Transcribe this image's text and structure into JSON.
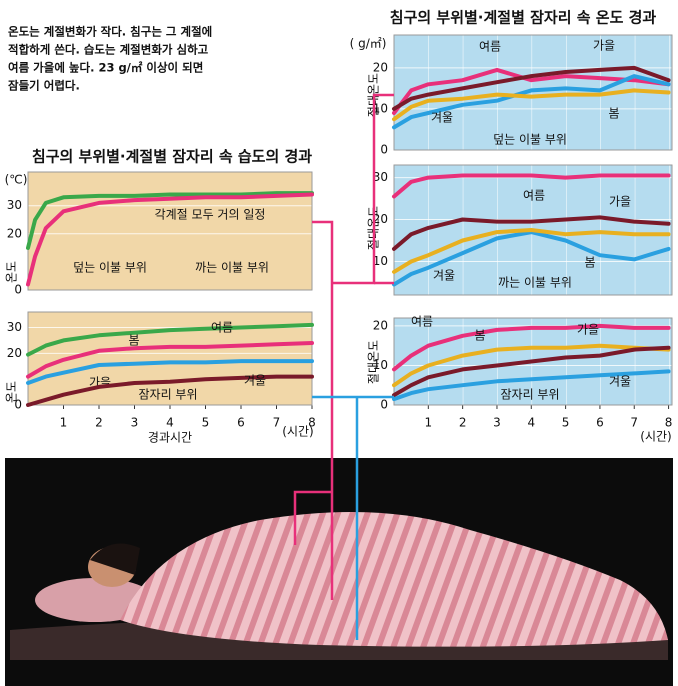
{
  "header": {
    "left_title": "침구의 부위별·계절별 잠자리 속 습도의 경과",
    "right_title": "침구의 부위별·계절별 잠자리 속 온도 경과",
    "note": [
      "온도는 계절변화가 작다. 침구는 그 계절에",
      "적합하게 쓴다. 습도는 계절변화가 심하고",
      "여름 가을에 높다. 23 g/㎡ 이상이 되면",
      "잠들기 어렵다."
    ]
  },
  "chart_data": [
    {
      "type": "line",
      "y_unit": "(℃)",
      "ylabel": "온도",
      "xlim": [
        0,
        8
      ],
      "ylim": [
        0,
        42
      ],
      "yticks": [
        0,
        20,
        30
      ],
      "annotations": [
        "각계절 모두 거의 일정"
      ],
      "x": [
        0,
        0.2,
        0.5,
        1,
        2,
        3,
        4,
        5,
        6,
        7,
        8
      ],
      "series": [
        {
          "name": "덮는 이불 부위",
          "color": "#3aa84a",
          "values": [
            15,
            25,
            31,
            33,
            33.5,
            33.5,
            34,
            34,
            34,
            34.5,
            34.5
          ]
        },
        {
          "name": "까는 이불 부위",
          "color": "#e8307a",
          "values": [
            2,
            12,
            22,
            28,
            31,
            32,
            32.5,
            33,
            33,
            33.5,
            34
          ]
        }
      ]
    },
    {
      "type": "line",
      "ylabel": "온도",
      "xlabel": "경과시간",
      "x_unit": "(시간)",
      "xlim": [
        0,
        8
      ],
      "ylim": [
        0,
        36
      ],
      "yticks": [
        0,
        20,
        30
      ],
      "xticks": [
        1,
        2,
        3,
        4,
        5,
        6,
        7,
        8
      ],
      "annotations": [
        "잠자리 부위"
      ],
      "x": [
        0,
        0.5,
        1,
        2,
        3,
        4,
        5,
        6,
        7,
        8
      ],
      "series": [
        {
          "name": "여름",
          "color": "#3aa84a",
          "values": [
            19.5,
            23,
            25,
            27,
            28,
            29,
            29.5,
            30,
            30.5,
            31
          ]
        },
        {
          "name": "봄",
          "color": "#e8307a",
          "values": [
            11,
            15,
            17.5,
            21,
            22,
            22.5,
            22.5,
            23,
            23.5,
            24
          ]
        },
        {
          "name": "가을",
          "color": "#2aa0e0",
          "values": [
            8.5,
            11,
            12.5,
            15.5,
            16,
            16.5,
            16.5,
            17,
            17,
            17
          ]
        },
        {
          "name": "겨울",
          "color": "#7a1a2a",
          "values": [
            0,
            2,
            4,
            7,
            8.5,
            9,
            10,
            10.5,
            11,
            11
          ]
        }
      ]
    },
    {
      "type": "line",
      "y_unit": "( g/㎡)",
      "ylabel": "절대온도",
      "xlim": [
        0,
        8.1
      ],
      "ylim": [
        0,
        28
      ],
      "yticks": [
        0,
        10,
        20
      ],
      "annotations": [
        "덮는 이불 부위"
      ],
      "x": [
        0,
        0.5,
        1,
        2,
        3,
        4,
        5,
        6,
        7,
        8
      ],
      "series": [
        {
          "name": "여름",
          "color": "#e8307a",
          "values": [
            9,
            14.5,
            16,
            17,
            19.5,
            17,
            18,
            17.5,
            17,
            16
          ]
        },
        {
          "name": "가을",
          "color": "#7a1a2a",
          "values": [
            10,
            12.5,
            13.5,
            15,
            16.5,
            18,
            19,
            19.5,
            20,
            17
          ]
        },
        {
          "name": "겨울",
          "color": "#2aa0e0",
          "values": [
            5.5,
            8,
            9,
            11,
            12,
            14.5,
            15,
            14.5,
            18,
            16
          ]
        },
        {
          "name": "봄",
          "color": "#e8b020",
          "values": [
            7.5,
            10.5,
            12,
            12.5,
            13.5,
            13,
            13.5,
            13.5,
            14.5,
            14
          ]
        }
      ]
    },
    {
      "type": "line",
      "ylabel": "절대온도",
      "xlim": [
        0,
        8.1
      ],
      "ylim": [
        2,
        33
      ],
      "yticks": [
        10,
        20,
        30
      ],
      "annotations": [
        "까는 이불 부위"
      ],
      "x": [
        0,
        0.5,
        1,
        2,
        3,
        4,
        5,
        6,
        7,
        8
      ],
      "series": [
        {
          "name": "여름",
          "color": "#e8307a",
          "values": [
            25.5,
            29,
            30,
            30.5,
            30.5,
            30.5,
            30,
            30.5,
            30.5,
            30.5
          ]
        },
        {
          "name": "가을",
          "color": "#7a1a2a",
          "values": [
            13,
            16.5,
            18,
            20,
            19.5,
            19.5,
            20,
            20.5,
            19.5,
            19
          ]
        },
        {
          "name": "겨울",
          "color": "#2aa0e0",
          "values": [
            4.5,
            7,
            8.5,
            12,
            15.5,
            17,
            15,
            11.5,
            10.5,
            13
          ]
        },
        {
          "name": "봄",
          "color": "#e8b020",
          "values": [
            7.5,
            10,
            11.5,
            15,
            17,
            17.5,
            16.5,
            17,
            16.5,
            16.5
          ]
        }
      ]
    },
    {
      "type": "line",
      "ylabel": "절대온도",
      "x_unit": "(시간)",
      "xlim": [
        0,
        8.1
      ],
      "ylim": [
        0,
        22
      ],
      "yticks": [
        0,
        10,
        20
      ],
      "xticks": [
        1,
        2,
        3,
        4,
        5,
        6,
        7,
        8
      ],
      "annotations": [
        "잠자리 부위"
      ],
      "x": [
        0,
        0.5,
        1,
        2,
        3,
        4,
        5,
        6,
        7,
        8
      ],
      "series": [
        {
          "name": "여름",
          "color": "#e8307a",
          "values": [
            9,
            12.5,
            15,
            17.5,
            19,
            19.5,
            19.5,
            20,
            19.5,
            19.5
          ]
        },
        {
          "name": "봄",
          "color": "#e8b020",
          "values": [
            5,
            8,
            10,
            12.5,
            14,
            14.5,
            14.5,
            15,
            14.5,
            14
          ]
        },
        {
          "name": "가을",
          "color": "#7a1a2a",
          "values": [
            2.5,
            5,
            7,
            9,
            10,
            11,
            12,
            12.5,
            14,
            14.5
          ]
        },
        {
          "name": "겨울",
          "color": "#2aa0e0",
          "values": [
            1.5,
            3,
            4,
            5,
            6,
            6.5,
            7,
            7.5,
            8,
            8.5
          ]
        }
      ]
    }
  ]
}
